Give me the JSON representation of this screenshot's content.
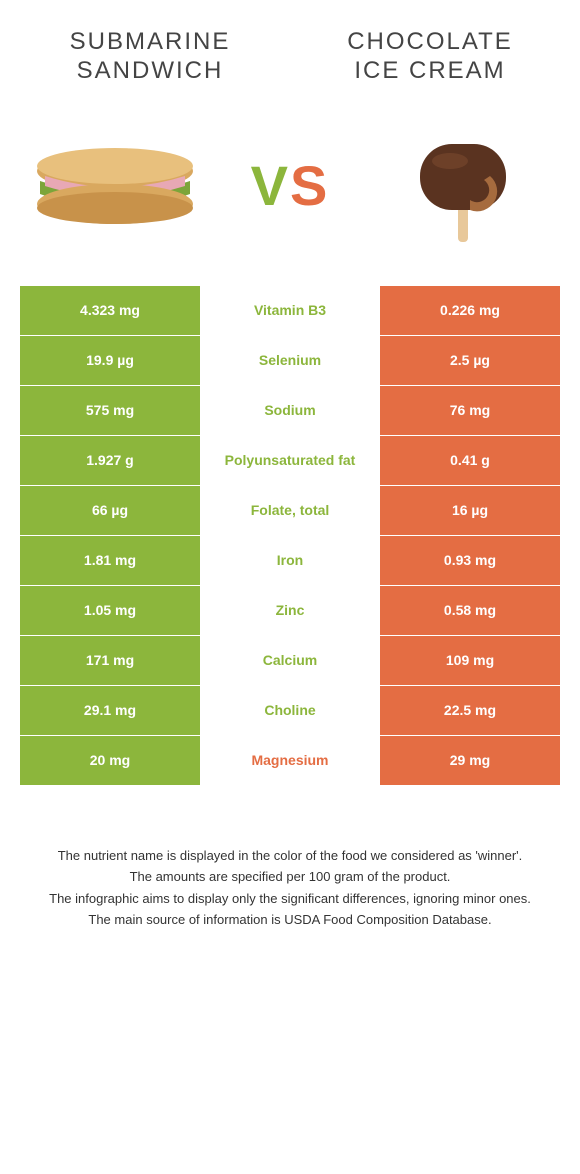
{
  "left_food": {
    "title": "SUBMARINE SANDWICH",
    "color": "#8cb63c"
  },
  "right_food": {
    "title": "CHOCOLATE ICE CREAM",
    "color": "#e46d43"
  },
  "vs": {
    "v": "V",
    "s": "S"
  },
  "table": {
    "left_bg": "#8cb63c",
    "right_bg": "#e46d43",
    "green_text": "#8cb63c",
    "orange_text": "#e46d43",
    "rows": [
      {
        "left": "4.323 mg",
        "mid": "Vitamin B3",
        "right": "0.226 mg",
        "winner": "left"
      },
      {
        "left": "19.9 µg",
        "mid": "Selenium",
        "right": "2.5 µg",
        "winner": "left"
      },
      {
        "left": "575 mg",
        "mid": "Sodium",
        "right": "76 mg",
        "winner": "left"
      },
      {
        "left": "1.927 g",
        "mid": "Polyunsaturated fat",
        "right": "0.41 g",
        "winner": "left"
      },
      {
        "left": "66 µg",
        "mid": "Folate, total",
        "right": "16 µg",
        "winner": "left"
      },
      {
        "left": "1.81 mg",
        "mid": "Iron",
        "right": "0.93 mg",
        "winner": "left"
      },
      {
        "left": "1.05 mg",
        "mid": "Zinc",
        "right": "0.58 mg",
        "winner": "left"
      },
      {
        "left": "171 mg",
        "mid": "Calcium",
        "right": "109 mg",
        "winner": "left"
      },
      {
        "left": "29.1 mg",
        "mid": "Choline",
        "right": "22.5 mg",
        "winner": "left"
      },
      {
        "left": "20 mg",
        "mid": "Magnesium",
        "right": "29 mg",
        "winner": "right"
      }
    ]
  },
  "footer": {
    "line1": "The nutrient name is displayed in the color of the food we considered as 'winner'.",
    "line2": "The amounts are specified per 100 gram of the product.",
    "line3": "The infographic aims to display only the significant differences, ignoring minor ones.",
    "line4": "The main source of information is USDA Food Composition Database."
  }
}
